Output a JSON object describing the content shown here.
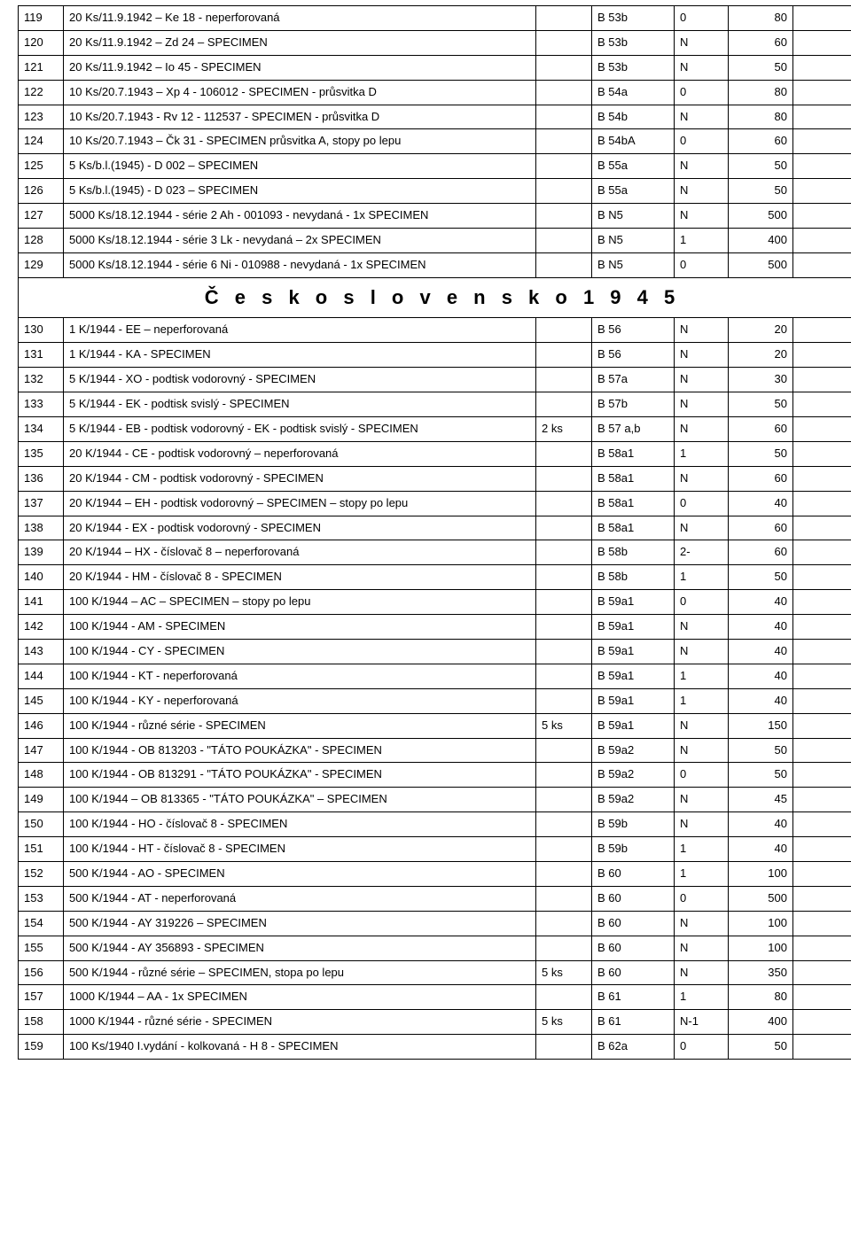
{
  "rows": [
    {
      "type": "row",
      "n": "119",
      "desc": "20 Ks/11.9.1942 – Ke 18 - neperforovaná",
      "qty": "",
      "code": "B 53b",
      "grade": "0",
      "price": "80"
    },
    {
      "type": "row",
      "n": "120",
      "desc": "20 Ks/11.9.1942 – Zd 24 – SPECIMEN",
      "qty": "",
      "code": "B 53b",
      "grade": "N",
      "price": "60"
    },
    {
      "type": "row",
      "n": "121",
      "desc": "20 Ks/11.9.1942 – Io 45 - SPECIMEN",
      "qty": "",
      "code": "B 53b",
      "grade": "N",
      "price": "50"
    },
    {
      "type": "row",
      "n": "122",
      "desc": "10 Ks/20.7.1943 – Xp 4 - 106012 - SPECIMEN - průsvitka D",
      "qty": "",
      "code": "B 54a",
      "grade": "0",
      "price": "80"
    },
    {
      "type": "row",
      "n": "123",
      "desc": "10 Ks/20.7.1943 -  Rv 12 - 112537 - SPECIMEN - průsvitka D",
      "qty": "",
      "code": "B 54b",
      "grade": "N",
      "price": "80"
    },
    {
      "type": "row",
      "n": "124",
      "desc": "10 Ks/20.7.1943 – Čk 31 - SPECIMEN průsvitka A, stopy po lepu",
      "qty": "",
      "code": "B 54bA",
      "grade": "0",
      "price": "60"
    },
    {
      "type": "row",
      "n": "125",
      "desc": "5 Ks/b.l.(1945) - D 002 – SPECIMEN",
      "qty": "",
      "code": "B 55a",
      "grade": "N",
      "price": "50"
    },
    {
      "type": "row",
      "n": "126",
      "desc": "5 Ks/b.l.(1945) - D 023 – SPECIMEN",
      "qty": "",
      "code": "B 55a",
      "grade": "N",
      "price": "50"
    },
    {
      "type": "row",
      "n": "127",
      "desc": "5000 Ks/18.12.1944 - série 2 Ah - 001093 - nevydaná -  1x SPECIMEN",
      "qty": "",
      "code": "B N5",
      "grade": "N",
      "price": "500"
    },
    {
      "type": "row",
      "n": "128",
      "desc": "5000 Ks/18.12.1944 - série 3 Lk - nevydaná – 2x SPECIMEN",
      "qty": "",
      "code": "B N5",
      "grade": "1",
      "price": "400"
    },
    {
      "type": "row",
      "n": "129",
      "desc": "5000 Ks/18.12.1944 - série 6 Ni - 010988 - nevydaná -  1x SPECIMEN",
      "qty": "",
      "code": "B N5",
      "grade": "0",
      "price": "500"
    },
    {
      "type": "section",
      "title": "Č e s k o s l o v e n s k o   1 9 4 5"
    },
    {
      "type": "row",
      "n": "130",
      "desc": "1 K/1944 - EE – neperforovaná",
      "qty": "",
      "code": "B 56",
      "grade": "N",
      "price": "20"
    },
    {
      "type": "row",
      "n": "131",
      "desc": "1 K/1944 - KA - SPECIMEN",
      "qty": "",
      "code": "B 56",
      "grade": "N",
      "price": "20"
    },
    {
      "type": "row",
      "n": "132",
      "desc": "5 K/1944 - XO - podtisk vodorovný - SPECIMEN",
      "qty": "",
      "code": "B 57a",
      "grade": "N",
      "price": "30"
    },
    {
      "type": "row",
      "n": "133",
      "desc": "5 K/1944 - EK - podtisk svislý - SPECIMEN",
      "qty": "",
      "code": "B 57b",
      "grade": "N",
      "price": "50"
    },
    {
      "type": "row",
      "n": "134",
      "desc": "5 K/1944 - EB - podtisk vodorovný - EK - podtisk svislý - SPECIMEN",
      "qty": "2 ks",
      "code": "B 57 a,b",
      "grade": "N",
      "price": "60"
    },
    {
      "type": "row",
      "n": "135",
      "desc": "20 K/1944 - CE - podtisk vodorovný – neperforovaná",
      "qty": "",
      "code": "B 58a1",
      "grade": "1",
      "price": "50"
    },
    {
      "type": "row",
      "n": "136",
      "desc": "20 K/1944 - CM - podtisk vodorovný - SPECIMEN",
      "qty": "",
      "code": "B 58a1",
      "grade": "N",
      "price": "60"
    },
    {
      "type": "row",
      "n": "137",
      "desc": "20 K/1944 – EH - podtisk vodorovný  – SPECIMEN – stopy po lepu",
      "qty": "",
      "code": "B 58a1",
      "grade": "0",
      "price": "40"
    },
    {
      "type": "row",
      "n": "138",
      "desc": "20 K/1944 - EX - podtisk vodorovný - SPECIMEN",
      "qty": "",
      "code": "B 58a1",
      "grade": "N",
      "price": "60"
    },
    {
      "type": "row",
      "n": "139",
      "desc": "20 K/1944 – HX  -  číslovač 8 – neperforovaná",
      "qty": "",
      "code": "B 58b",
      "grade": "2-",
      "price": "60"
    },
    {
      "type": "row",
      "n": "140",
      "desc": "20 K/1944 - HM - číslovač 8 - SPECIMEN",
      "qty": "",
      "code": "B 58b",
      "grade": "1",
      "price": "50"
    },
    {
      "type": "row",
      "n": "141",
      "desc": "100 K/1944 – AC – SPECIMEN – stopy po lepu",
      "qty": "",
      "code": "B 59a1",
      "grade": "0",
      "price": "40"
    },
    {
      "type": "row",
      "n": "142",
      "desc": "100 K/1944 - AM - SPECIMEN",
      "qty": "",
      "code": "B 59a1",
      "grade": "N",
      "price": "40"
    },
    {
      "type": "row",
      "n": "143",
      "desc": "100 K/1944 - CY - SPECIMEN",
      "qty": "",
      "code": "B 59a1",
      "grade": "N",
      "price": "40"
    },
    {
      "type": "row",
      "n": "144",
      "desc": "100 K/1944 - KT - neperforovaná",
      "qty": "",
      "code": "B 59a1",
      "grade": "1",
      "price": "40"
    },
    {
      "type": "row",
      "n": "145",
      "desc": "100 K/1944 - KY - neperforovaná",
      "qty": "",
      "code": "B 59a1",
      "grade": "1",
      "price": "40"
    },
    {
      "type": "row",
      "n": "146",
      "desc": "100 K/1944 - různé série - SPECIMEN",
      "qty": "5 ks",
      "code": "B 59a1",
      "grade": "N",
      "price": "150"
    },
    {
      "type": "row",
      "n": "147",
      "desc": "100 K/1944 - OB 813203 - \"TÁTO POUKÁZKA\" - SPECIMEN",
      "qty": "",
      "code": "B 59a2",
      "grade": "N",
      "price": "50"
    },
    {
      "type": "row",
      "n": "148",
      "desc": "100 K/1944 - OB 813291 - \"TÁTO POUKÁZKA\" - SPECIMEN",
      "qty": "",
      "code": "B 59a2",
      "grade": "0",
      "price": "50"
    },
    {
      "type": "row",
      "n": "149",
      "desc": "100 K/1944 – OB 813365 - \"TÁTO POUKÁZKA\"  – SPECIMEN",
      "qty": "",
      "code": "B 59a2",
      "grade": "N",
      "price": "45"
    },
    {
      "type": "row",
      "n": "150",
      "desc": "100 K/1944 - HO - číslovač 8 - SPECIMEN",
      "qty": "",
      "code": "B 59b",
      "grade": "N",
      "price": "40"
    },
    {
      "type": "row",
      "n": "151",
      "desc": "100 K/1944 - HT - číslovač 8 - SPECIMEN",
      "qty": "",
      "code": "B 59b",
      "grade": "1",
      "price": "40"
    },
    {
      "type": "row",
      "n": "152",
      "desc": "500 K/1944 - AO - SPECIMEN",
      "qty": "",
      "code": "B 60",
      "grade": "1",
      "price": "100"
    },
    {
      "type": "row",
      "n": "153",
      "desc": "500 K/1944 - AT - neperforovaná",
      "qty": "",
      "code": "B 60",
      "grade": "0",
      "price": "500"
    },
    {
      "type": "row",
      "n": "154",
      "desc": "500 K/1944 - AY 319226 – SPECIMEN",
      "qty": "",
      "code": "B 60",
      "grade": "N",
      "price": "100"
    },
    {
      "type": "row",
      "n": "155",
      "desc": "500 K/1944 - AY 356893 - SPECIMEN",
      "qty": "",
      "code": "B 60",
      "grade": "N",
      "price": "100"
    },
    {
      "type": "row",
      "n": "156",
      "desc": "500 K/1944 - různé série – SPECIMEN, stopa po lepu",
      "qty": "5 ks",
      "code": "B 60",
      "grade": "N",
      "price": "350"
    },
    {
      "type": "row",
      "n": "157",
      "desc": "1000 K/1944 – AA - 1x SPECIMEN",
      "qty": "",
      "code": "B 61",
      "grade": "1",
      "price": "80"
    },
    {
      "type": "row",
      "n": "158",
      "desc": "1000 K/1944 - různé série - SPECIMEN",
      "qty": "5 ks",
      "code": "B 61",
      "grade": "N-1",
      "price": "400"
    },
    {
      "type": "row",
      "n": "159",
      "desc": "100 Ks/1940 I.vydání - kolkovaná - H 8 - SPECIMEN",
      "qty": "",
      "code": "B 62a",
      "grade": "0",
      "price": "50"
    }
  ]
}
